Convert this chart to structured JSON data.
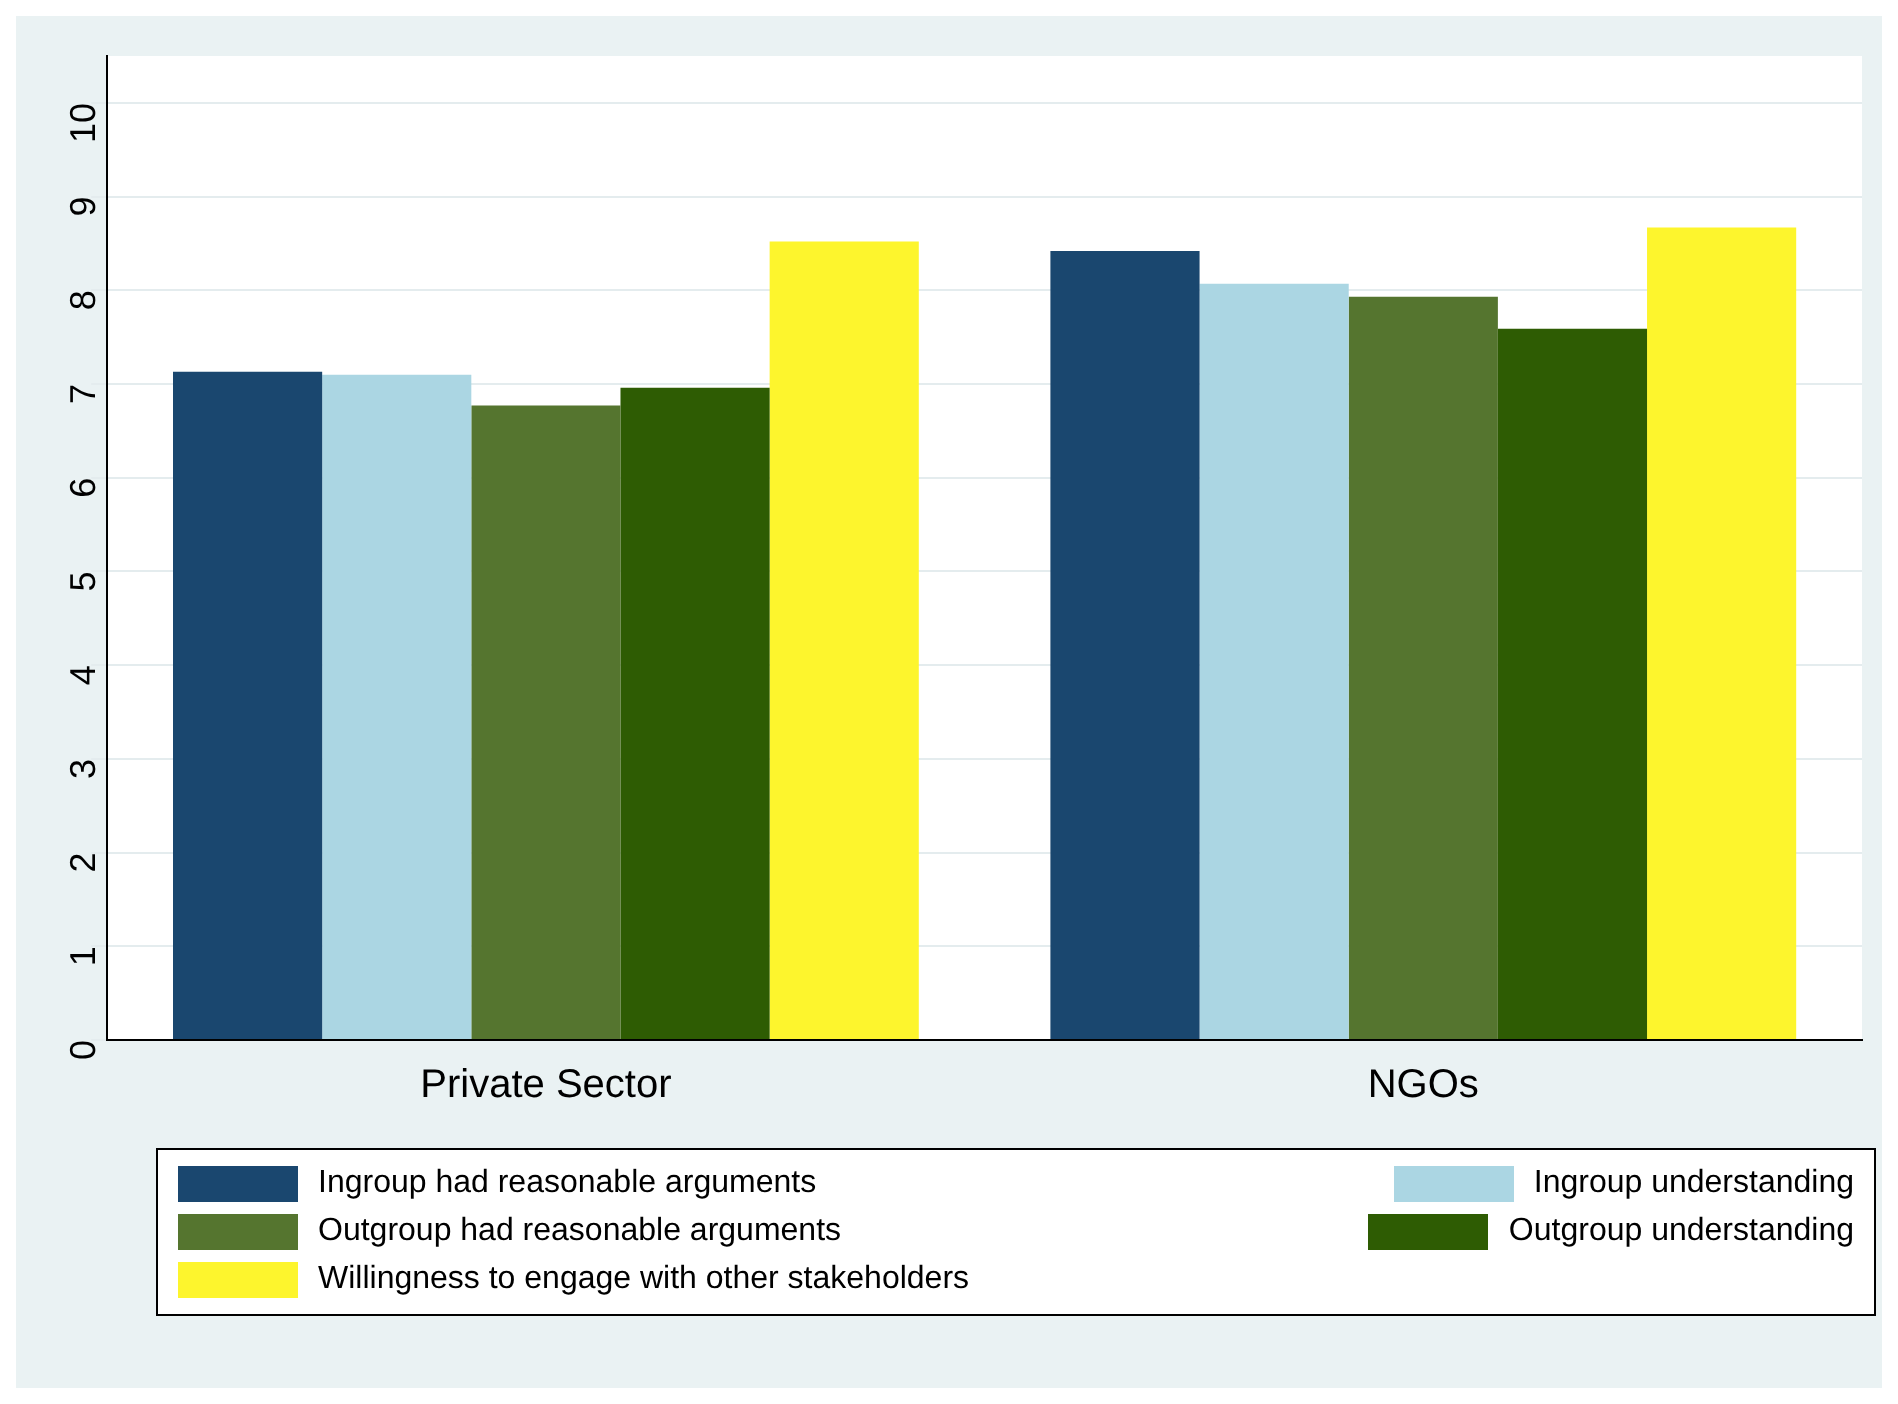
{
  "chart_data": {
    "type": "bar",
    "categories": [
      "Private Sector",
      "NGOs"
    ],
    "series": [
      {
        "name": "Ingroup had reasonable arguments",
        "color": "#1a476f",
        "values": [
          7.13,
          8.42
        ]
      },
      {
        "name": "Ingroup understanding",
        "color": "#abd6e3",
        "values": [
          7.1,
          8.07
        ]
      },
      {
        "name": "Outgroup had reasonable arguments",
        "color": "#55752f",
        "values": [
          6.77,
          7.93
        ]
      },
      {
        "name": "Outgroup understanding",
        "color": "#2e5c03",
        "values": [
          6.96,
          7.59
        ]
      },
      {
        "name": "Willingness to engage with other stakeholders",
        "color": "#fdf52d",
        "values": [
          8.52,
          8.67
        ]
      }
    ],
    "ylim": [
      0,
      10.5
    ],
    "yticks": [
      0,
      1,
      2,
      3,
      4,
      5,
      6,
      7,
      8,
      9,
      10
    ],
    "grid": "y",
    "legend": "bottom"
  }
}
